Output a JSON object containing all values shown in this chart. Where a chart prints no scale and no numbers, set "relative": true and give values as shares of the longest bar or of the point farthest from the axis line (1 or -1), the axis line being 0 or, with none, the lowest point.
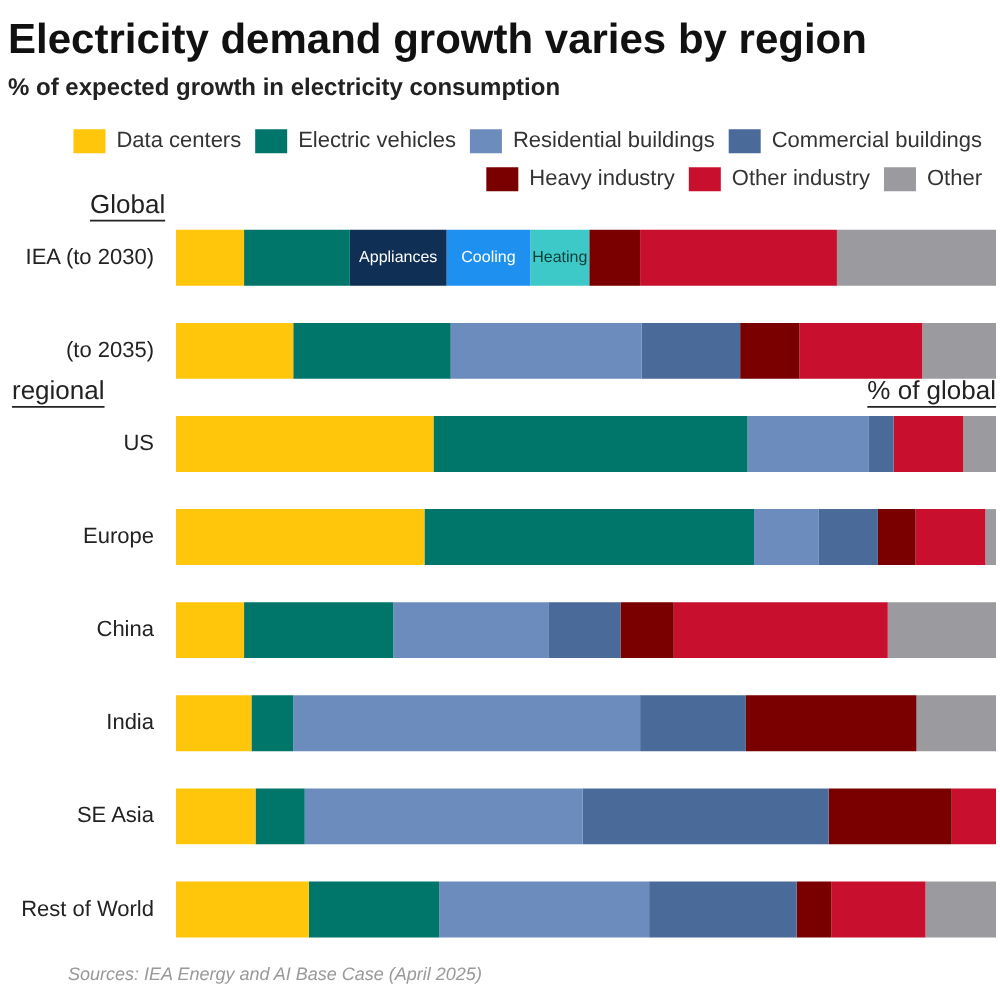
{
  "chart_data": {
    "type": "bar",
    "orientation": "horizontal",
    "stacked": true,
    "relative": true,
    "title": "Electricity demand growth varies by region",
    "subtitle": "% of expected growth in electricity consumption",
    "legend": "top",
    "categories": [
      "IEA (to 2030)",
      "(to 2035)",
      "US",
      "Europe",
      "China",
      "India",
      "SE Asia",
      "Rest of World"
    ],
    "series": [
      {
        "name": "Data centers",
        "color": "#ffc60b",
        "values": [
          0.083,
          0.143,
          0.314,
          0.303,
          0.083,
          0.092,
          0.097,
          0.162
        ]
      },
      {
        "name": "Electric vehicles",
        "color": "#00756a",
        "values": [
          0.129,
          0.192,
          0.383,
          0.402,
          0.182,
          0.051,
          0.06,
          0.159
        ]
      },
      {
        "name": "Appliances",
        "color": "#0f2f55",
        "values": [
          0.118,
          null,
          null,
          null,
          null,
          null,
          null,
          null
        ]
      },
      {
        "name": "Cooling",
        "color": "#1e90f0",
        "values": [
          0.102,
          null,
          null,
          null,
          null,
          null,
          null,
          null
        ]
      },
      {
        "name": "Heating",
        "color": "#3ec9c9",
        "values": [
          0.072,
          null,
          null,
          null,
          null,
          null,
          null,
          null
        ]
      },
      {
        "name": "Residential buildings",
        "color": "#6b8cbc",
        "values": [
          null,
          0.233,
          0.148,
          0.079,
          0.189,
          0.423,
          0.339,
          0.256
        ]
      },
      {
        "name": "Commercial buildings",
        "color": "#4a6a9a",
        "values": [
          null,
          0.12,
          0.03,
          0.072,
          0.088,
          0.129,
          0.3,
          0.18
        ]
      },
      {
        "name": "Heavy industry",
        "color": "#7a0000",
        "values": [
          0.062,
          0.072,
          0,
          0.046,
          0.065,
          0.208,
          0.15,
          0.042
        ]
      },
      {
        "name": "Other industry",
        "color": "#c8102e",
        "values": [
          0.24,
          0.15,
          0.085,
          0.085,
          0.261,
          0,
          0.054,
          0.115
        ]
      },
      {
        "name": "Other",
        "color": "#9b9a9e",
        "values": [
          0.194,
          0.09,
          0.04,
          0.013,
          0.132,
          0.097,
          0,
          0.086
        ]
      }
    ],
    "annotations": [
      "Global",
      "regional",
      "% of global",
      "Sources: IEA Energy and AI Base Case (April 2025)"
    ]
  }
}
